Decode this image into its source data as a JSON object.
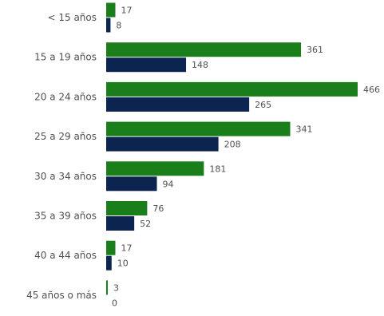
{
  "chart_data": {
    "type": "bar",
    "orientation": "horizontal",
    "categories": [
      "< 15 años",
      "15 a 19 años",
      "20 a 24 años",
      "25 a 29 años",
      "30 a 34 años",
      "35 a 39 años",
      "40 a 44 años",
      "45 años o más"
    ],
    "series": [
      {
        "values": [
          17,
          361,
          466,
          341,
          181,
          76,
          17,
          3
        ],
        "color": "#1a7f1a"
      },
      {
        "values": [
          8,
          148,
          265,
          208,
          94,
          52,
          10,
          0
        ],
        "color": "#0c2450"
      }
    ],
    "xlim": [
      0,
      466
    ],
    "grid": false,
    "legend": false,
    "data_labels": true
  }
}
